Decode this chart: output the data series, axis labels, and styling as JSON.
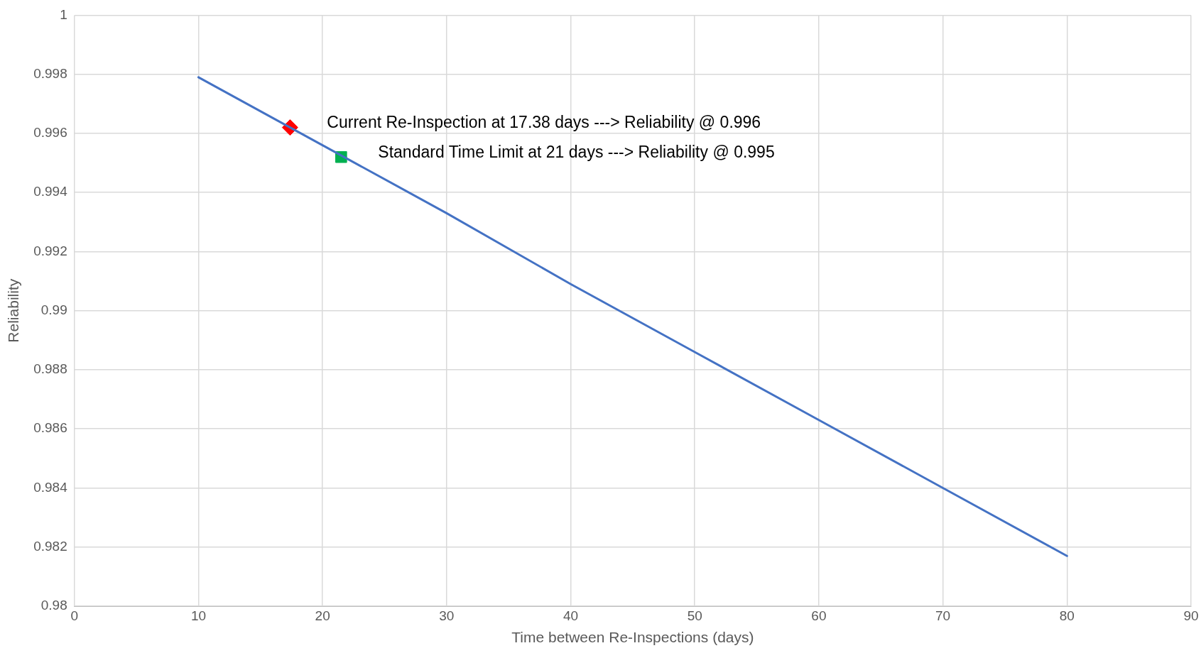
{
  "chart_data": {
    "type": "line",
    "xlabel": "Time between Re-Inspections (days)",
    "ylabel": "Reliability",
    "xlim": [
      0,
      90
    ],
    "xticks": [
      0,
      10,
      20,
      30,
      40,
      50,
      60,
      70,
      80,
      90
    ],
    "ylim": [
      0.98,
      1
    ],
    "yticks": [
      0.98,
      0.982,
      0.984,
      0.986,
      0.988,
      0.99,
      0.992,
      0.994,
      0.996,
      0.998,
      1
    ],
    "grid": true,
    "series": [
      {
        "color": "#4472c4",
        "marker": "none",
        "x": [
          10,
          20,
          30,
          40,
          50,
          60,
          70,
          80
        ],
        "values": [
          0.9979,
          0.9956,
          0.9933,
          0.9909,
          0.9886,
          0.9863,
          0.984,
          0.9817
        ]
      },
      {
        "type": "scatter",
        "color": "#ff0000",
        "marker": "diamond",
        "x": [
          17.38
        ],
        "values": [
          0.9962
        ]
      },
      {
        "type": "scatter",
        "color": "#00b050",
        "marker": "square",
        "x": [
          21.5
        ],
        "values": [
          0.9952
        ]
      }
    ],
    "annotations": [
      {
        "text": "Current Re-Inspection at 17.38 days ---> Reliability @ 0.996",
        "x": 17.38,
        "y": 0.9962
      },
      {
        "text": "Standard Time Limit at 21 days ---> Reliability @ 0.995",
        "x": 21.5,
        "y": 0.9952
      }
    ]
  }
}
